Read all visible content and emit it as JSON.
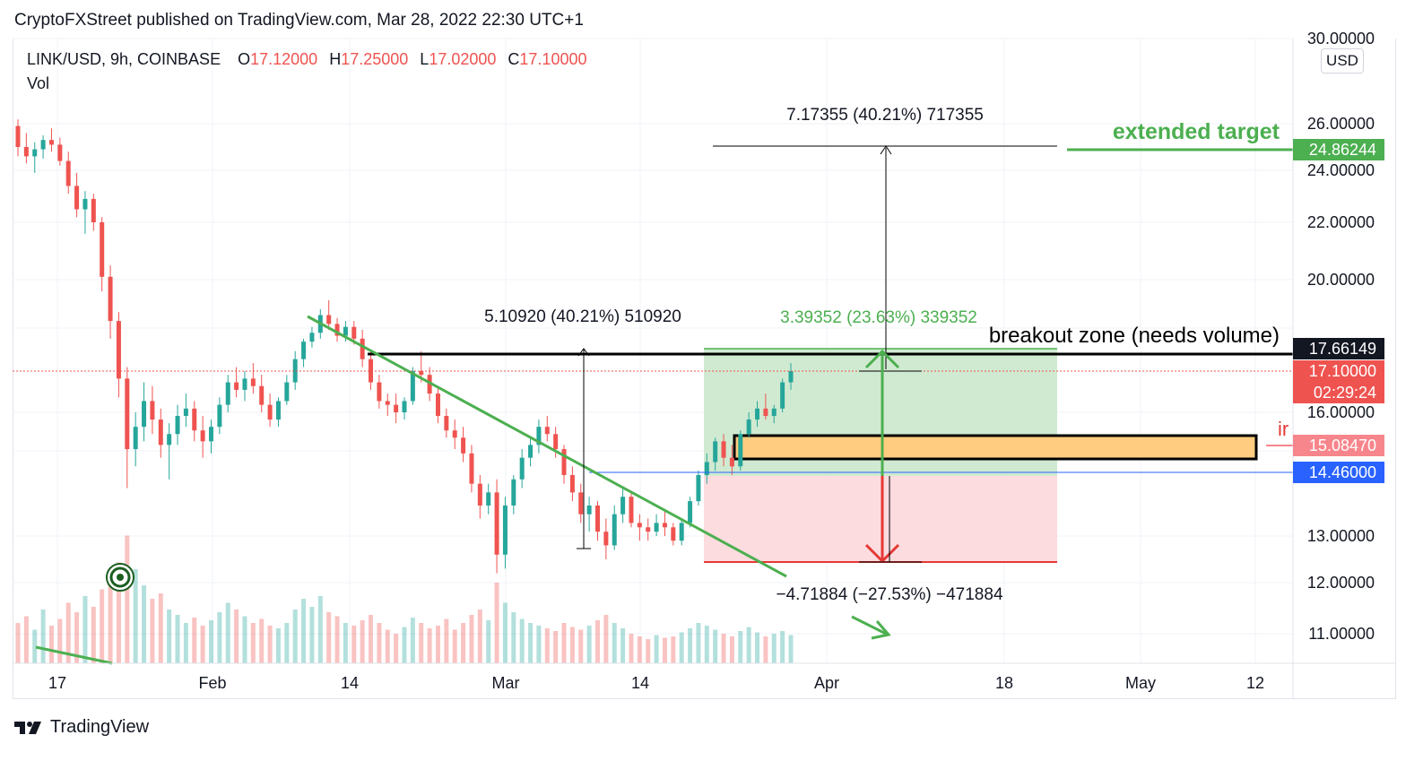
{
  "header": {
    "published": "CryptoFXStreet published on TradingView.com, Mar 28, 2022 22:30 UTC+1"
  },
  "legend": {
    "symbol": "LINK/USD, 9h, COINBASE",
    "o_label": "O",
    "o_value": "17.12000",
    "h_label": "H",
    "h_value": "17.25000",
    "l_label": "L",
    "l_value": "17.02000",
    "c_label": "C",
    "c_value": "17.10000",
    "vol_label": "Vol"
  },
  "currency_button": "USD",
  "footer": {
    "brand": "TradingView"
  },
  "colors": {
    "up": "#26a69a",
    "down": "#ef5350",
    "green_line": "#4caf50",
    "profit_zone": "#c8e6c9",
    "loss_zone": "#fcd8dc",
    "zone_orange": "#ffcc80",
    "blue_line": "#2962ff"
  },
  "chart_data": {
    "type": "candlestick",
    "x_ticks": [
      "17",
      "Feb",
      "14",
      "Mar",
      "14",
      "Apr",
      "18",
      "May",
      "12"
    ],
    "y_ticks": [
      "30.00000",
      "26.00000",
      "24.00000",
      "22.00000",
      "20.00000",
      "16.00000",
      "13.00000",
      "12.00000",
      "11.00000"
    ],
    "price_tags": [
      {
        "label": "24.86244",
        "color": "#4caf50"
      },
      {
        "label": "17.66149",
        "color": "#131722"
      },
      {
        "label": "17.10000",
        "color": "#ef5350"
      },
      {
        "label": "02:29:24",
        "color": "#ef5350"
      },
      {
        "label": "15.08470",
        "color": "#f7868c"
      },
      {
        "label": "14.46000",
        "color": "#2962ff"
      }
    ],
    "annotations": {
      "measure_top": "7.17355 (40.21%) 717355",
      "extended_target": "extended target",
      "measure_left": "5.10920 (40.21%) 510920",
      "measure_green": "3.39352 (23.63%) 339352",
      "breakout": "breakout zone (needs volume)",
      "measure_bottom": "−4.71884 (−27.53%) −471884",
      "cut_label": "ir"
    },
    "key_levels": {
      "extended_target": 24.86244,
      "breakout": 17.66149,
      "last": 17.1,
      "zone": 15.0847,
      "blue": 14.46,
      "stop": 12.4
    },
    "candles_ohlc_approx": [
      [
        25.9,
        26.2,
        24.6,
        25.0
      ],
      [
        25.0,
        25.6,
        24.3,
        24.6
      ],
      [
        24.6,
        25.2,
        23.9,
        24.9
      ],
      [
        24.9,
        25.5,
        24.5,
        25.3
      ],
      [
        25.3,
        25.8,
        24.8,
        25.1
      ],
      [
        25.1,
        25.4,
        24.2,
        24.4
      ],
      [
        24.4,
        24.8,
        23.1,
        23.4
      ],
      [
        23.4,
        23.9,
        22.2,
        22.5
      ],
      [
        22.5,
        23.2,
        21.6,
        22.9
      ],
      [
        22.9,
        23.1,
        21.7,
        22.0
      ],
      [
        22.0,
        22.2,
        19.6,
        20.1
      ],
      [
        20.1,
        20.5,
        18.0,
        18.6
      ],
      [
        18.6,
        18.9,
        16.4,
        16.9
      ],
      [
        16.9,
        17.2,
        14.1,
        15.0
      ],
      [
        15.0,
        16.0,
        14.6,
        15.6
      ],
      [
        15.6,
        16.8,
        15.2,
        16.3
      ],
      [
        16.3,
        16.7,
        15.4,
        15.8
      ],
      [
        15.8,
        16.1,
        14.8,
        15.1
      ],
      [
        15.1,
        15.7,
        14.3,
        15.4
      ],
      [
        15.4,
        16.2,
        15.1,
        15.9
      ],
      [
        15.9,
        16.5,
        15.6,
        16.1
      ],
      [
        16.1,
        16.3,
        15.2,
        15.5
      ],
      [
        15.5,
        15.9,
        14.8,
        15.2
      ],
      [
        15.2,
        15.8,
        14.9,
        15.6
      ],
      [
        15.6,
        16.4,
        15.4,
        16.2
      ],
      [
        16.2,
        17.0,
        16.0,
        16.8
      ],
      [
        16.8,
        17.2,
        16.4,
        16.6
      ],
      [
        16.6,
        17.1,
        16.3,
        16.9
      ],
      [
        16.9,
        17.3,
        16.5,
        16.7
      ],
      [
        16.7,
        17.0,
        16.0,
        16.2
      ],
      [
        16.2,
        16.5,
        15.6,
        15.8
      ],
      [
        15.8,
        16.4,
        15.6,
        16.3
      ],
      [
        16.3,
        17.0,
        16.2,
        16.8
      ],
      [
        16.8,
        17.6,
        16.6,
        17.4
      ],
      [
        17.4,
        18.0,
        17.2,
        17.9
      ],
      [
        17.9,
        18.4,
        17.7,
        18.2
      ],
      [
        18.2,
        19.0,
        18.0,
        18.8
      ],
      [
        18.8,
        19.3,
        18.3,
        18.5
      ],
      [
        18.5,
        18.7,
        17.9,
        18.1
      ],
      [
        18.1,
        18.6,
        17.9,
        18.4
      ],
      [
        18.4,
        18.6,
        17.8,
        18.0
      ],
      [
        18.0,
        18.3,
        17.2,
        17.4
      ],
      [
        17.4,
        17.6,
        16.6,
        16.8
      ],
      [
        16.8,
        17.0,
        16.1,
        16.3
      ],
      [
        16.3,
        16.5,
        15.9,
        16.2
      ],
      [
        16.2,
        16.5,
        15.7,
        16.0
      ],
      [
        16.0,
        16.4,
        15.8,
        16.3
      ],
      [
        16.3,
        17.2,
        16.2,
        17.1
      ],
      [
        17.1,
        17.6,
        16.8,
        17.0
      ],
      [
        17.0,
        17.2,
        16.3,
        16.5
      ],
      [
        16.5,
        16.7,
        15.7,
        15.9
      ],
      [
        15.9,
        16.1,
        15.3,
        15.5
      ],
      [
        15.5,
        15.8,
        15.0,
        15.3
      ],
      [
        15.3,
        15.6,
        14.7,
        14.9
      ],
      [
        14.9,
        15.1,
        14.0,
        14.2
      ],
      [
        14.2,
        14.4,
        13.4,
        13.7
      ],
      [
        13.7,
        14.2,
        13.5,
        14.0
      ],
      [
        14.0,
        14.3,
        12.2,
        12.6
      ],
      [
        12.6,
        13.9,
        12.3,
        13.7
      ],
      [
        13.7,
        14.4,
        13.5,
        14.3
      ],
      [
        14.3,
        15.0,
        14.1,
        14.8
      ],
      [
        14.8,
        15.3,
        14.6,
        15.1
      ],
      [
        15.1,
        15.8,
        14.9,
        15.6
      ],
      [
        15.6,
        15.9,
        15.2,
        15.4
      ],
      [
        15.4,
        15.6,
        14.8,
        15.0
      ],
      [
        15.0,
        15.1,
        14.2,
        14.4
      ],
      [
        14.4,
        14.6,
        13.8,
        14.0
      ],
      [
        14.0,
        14.2,
        13.3,
        13.5
      ],
      [
        13.5,
        13.9,
        13.1,
        13.7
      ],
      [
        13.7,
        13.8,
        12.9,
        13.1
      ],
      [
        13.1,
        13.4,
        12.5,
        12.8
      ],
      [
        12.8,
        13.7,
        12.7,
        13.5
      ],
      [
        13.5,
        14.1,
        13.3,
        13.9
      ],
      [
        13.9,
        14.0,
        13.2,
        13.3
      ],
      [
        13.3,
        13.5,
        12.9,
        13.2
      ],
      [
        13.2,
        13.4,
        12.9,
        13.1
      ],
      [
        13.1,
        13.5,
        13.0,
        13.3
      ],
      [
        13.3,
        13.6,
        13.0,
        13.2
      ],
      [
        13.2,
        13.3,
        12.8,
        12.9
      ],
      [
        12.9,
        13.4,
        12.8,
        13.3
      ],
      [
        13.3,
        13.9,
        13.2,
        13.8
      ],
      [
        13.8,
        14.5,
        13.7,
        14.4
      ],
      [
        14.4,
        14.9,
        14.2,
        14.7
      ],
      [
        14.7,
        15.3,
        14.5,
        15.2
      ],
      [
        15.2,
        15.4,
        14.6,
        14.8
      ],
      [
        14.8,
        15.1,
        14.4,
        14.6
      ],
      [
        14.6,
        15.5,
        14.5,
        15.4
      ],
      [
        15.4,
        16.0,
        15.3,
        15.8
      ],
      [
        15.8,
        16.3,
        15.6,
        16.1
      ],
      [
        16.1,
        16.5,
        15.8,
        15.9
      ],
      [
        15.9,
        16.2,
        15.7,
        16.1
      ],
      [
        16.1,
        16.9,
        16.0,
        16.8
      ],
      [
        16.8,
        17.3,
        16.6,
        17.1
      ]
    ],
    "volume_approx": [
      0.3,
      0.35,
      0.25,
      0.4,
      0.28,
      0.33,
      0.45,
      0.38,
      0.5,
      0.42,
      0.55,
      0.6,
      0.75,
      0.95,
      0.7,
      0.58,
      0.48,
      0.52,
      0.4,
      0.36,
      0.3,
      0.34,
      0.28,
      0.32,
      0.38,
      0.45,
      0.4,
      0.35,
      0.3,
      0.33,
      0.28,
      0.26,
      0.3,
      0.4,
      0.48,
      0.42,
      0.5,
      0.38,
      0.35,
      0.3,
      0.28,
      0.32,
      0.36,
      0.3,
      0.25,
      0.22,
      0.27,
      0.34,
      0.3,
      0.26,
      0.28,
      0.33,
      0.25,
      0.3,
      0.36,
      0.4,
      0.32,
      0.6,
      0.45,
      0.38,
      0.33,
      0.3,
      0.28,
      0.26,
      0.24,
      0.3,
      0.27,
      0.25,
      0.28,
      0.32,
      0.36,
      0.3,
      0.26,
      0.22,
      0.2,
      0.18,
      0.21,
      0.19,
      0.2,
      0.23,
      0.26,
      0.3,
      0.28,
      0.25,
      0.22,
      0.2,
      0.24,
      0.27,
      0.23,
      0.2,
      0.22,
      0.24,
      0.21
    ]
  }
}
